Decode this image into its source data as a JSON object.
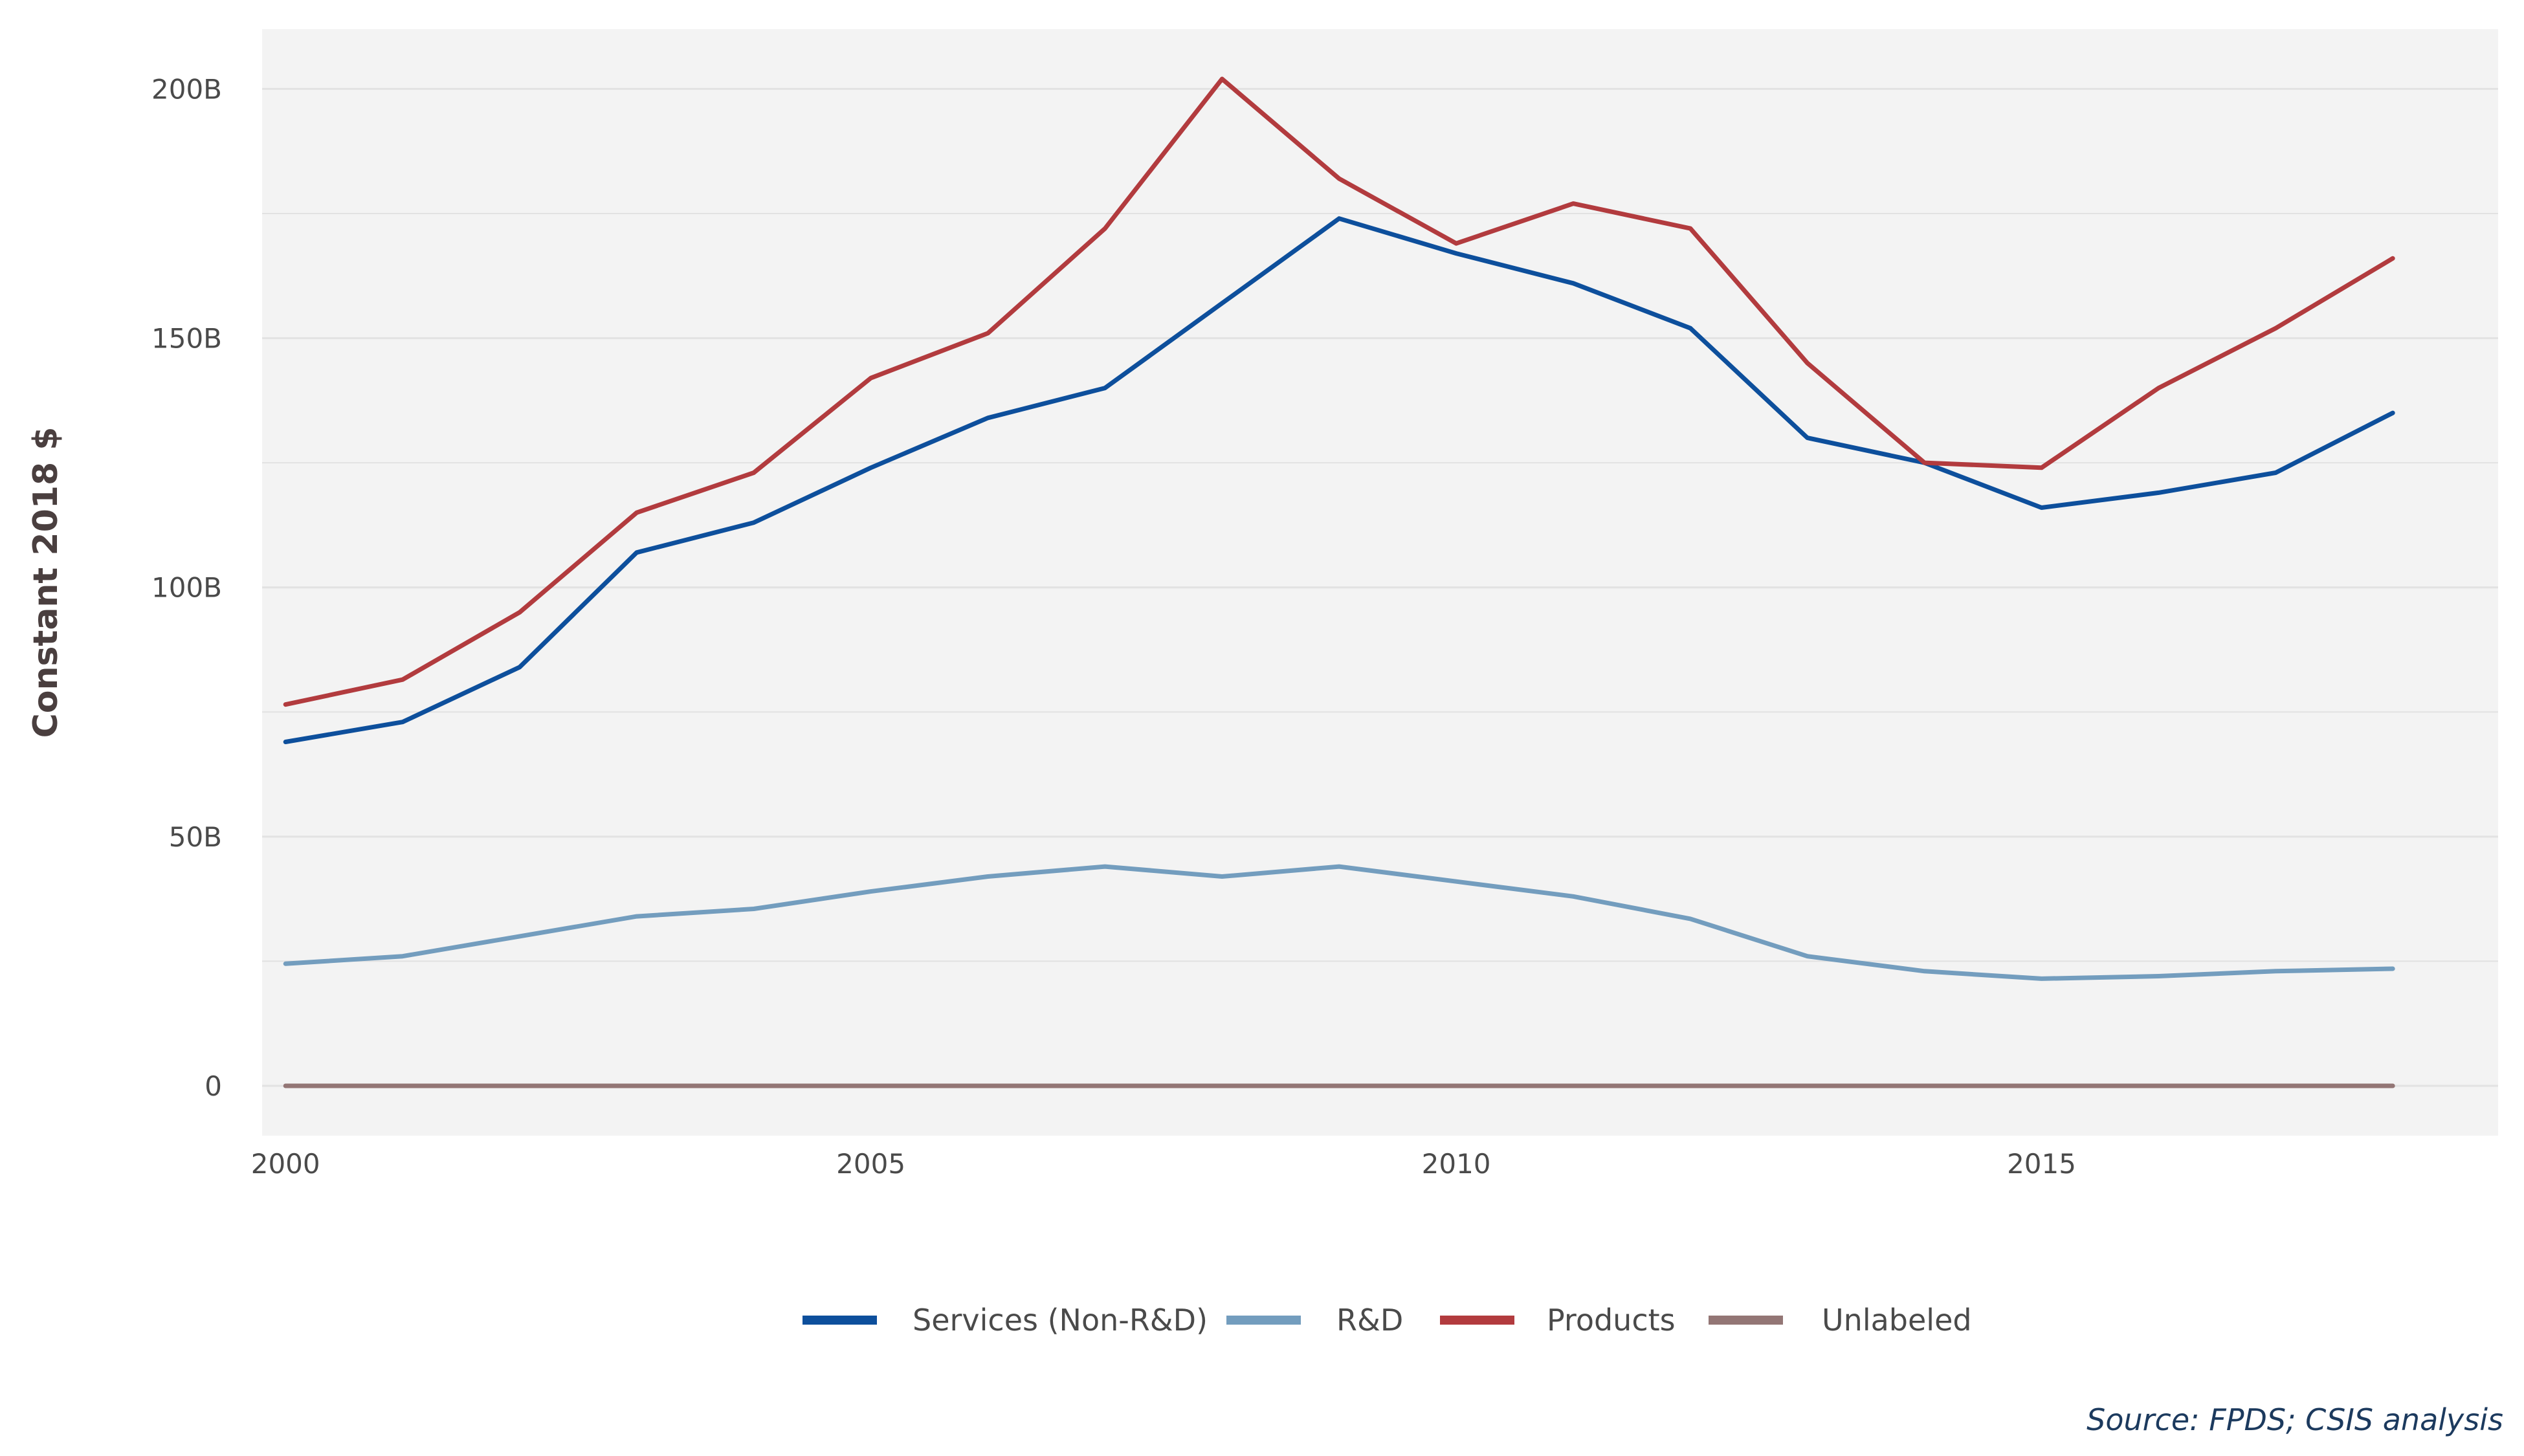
{
  "chart_data": {
    "type": "line",
    "ylabel": "Constant 2018 $",
    "xlabel": "",
    "x": [
      2000,
      2001,
      2002,
      2003,
      2004,
      2005,
      2006,
      2007,
      2008,
      2009,
      2010,
      2011,
      2012,
      2013,
      2014,
      2015,
      2016,
      2017,
      2018
    ],
    "xlim": [
      1999.8,
      2018.9
    ],
    "ylim": [
      -10,
      212
    ],
    "x_ticks": [
      2000,
      2005,
      2010,
      2015
    ],
    "x_tick_labels": [
      "2000",
      "2005",
      "2010",
      "2015"
    ],
    "y_ticks": [
      0,
      50,
      100,
      150,
      200
    ],
    "y_tick_labels": [
      "0",
      "50B",
      "100B",
      "150B",
      "200B"
    ],
    "y_minor_gridlines": [
      25,
      75,
      125,
      175
    ],
    "grid": true,
    "legend_position": "bottom",
    "series": [
      {
        "name": "Services (Non-R&D)",
        "color": "#0d4f9c",
        "values": [
          69,
          73,
          84,
          107,
          113,
          124,
          134,
          140,
          157,
          174,
          167,
          161,
          152,
          130,
          125,
          116,
          119,
          123,
          135
        ]
      },
      {
        "name": "R&D",
        "color": "#739dbe",
        "values": [
          24.5,
          26,
          30,
          34,
          35.5,
          39,
          42,
          44,
          42,
          44,
          41,
          38,
          33.5,
          26,
          23,
          21.5,
          22,
          23,
          23.5
        ]
      },
      {
        "name": "Products",
        "color": "#b23b3e",
        "values": [
          76.5,
          81.5,
          95,
          115,
          123,
          142,
          151,
          172,
          202,
          182,
          169,
          177,
          172,
          145,
          125,
          124,
          140,
          152,
          166
        ]
      },
      {
        "name": "Unlabeled",
        "color": "#937675",
        "values": [
          0,
          0,
          0,
          0,
          0,
          0,
          0,
          0,
          0,
          0,
          0,
          0,
          0,
          0,
          0,
          0,
          0,
          0,
          0
        ]
      }
    ],
    "source_note": "Source: FPDS; CSIS analysis"
  },
  "colors": {
    "panel_background": "#f3f3f3",
    "gridline": "#e2e2e2"
  }
}
